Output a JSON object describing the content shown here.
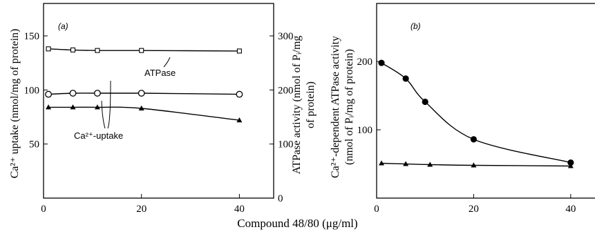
{
  "xlabel": "Compound 48/80 (μg/ml)",
  "chart_data": [
    {
      "type": "line",
      "panel": "(a)",
      "x_ticks": [
        "0",
        "20",
        "40"
      ],
      "xlim": [
        0,
        47
      ],
      "ylabel_left": "Ca²⁺ uptake (nmol/mg of protein)",
      "ylabel_right": "ATPase activity (nmol of Pᵢ/mg of protein)",
      "ylim_left": [
        0,
        180
      ],
      "y_ticks_left": [
        "50",
        "100",
        "150"
      ],
      "ylim_right": [
        0,
        360
      ],
      "y_ticks_right": [
        "0",
        "100",
        "200",
        "300"
      ],
      "series": [
        {
          "name": "ATPase",
          "axis": "right",
          "marker": "square-open",
          "x": [
            1,
            6,
            11,
            20,
            40
          ],
          "y": [
            276,
            274,
            273,
            273,
            272
          ]
        },
        {
          "axis": "left",
          "marker": "circle-open",
          "x": [
            1,
            6,
            11,
            20,
            40
          ],
          "y": [
            96,
            97,
            97,
            97,
            96
          ]
        },
        {
          "name": "Ca²⁺-uptake",
          "axis": "left",
          "marker": "triangle-filled",
          "x": [
            1,
            6,
            11,
            20,
            40
          ],
          "y": [
            84,
            84,
            84,
            83,
            72
          ]
        }
      ],
      "annotations": [
        "ATPase",
        "Ca²⁺-uptake"
      ]
    },
    {
      "type": "line",
      "panel": "(b)",
      "x_ticks": [
        "0",
        "20",
        "40"
      ],
      "xlim": [
        0,
        47
      ],
      "ylabel": "Ca²⁺-dependent ATPase activity (nmol of Pᵢ/mg of protein)",
      "ylim": [
        0,
        285
      ],
      "y_ticks": [
        "100",
        "200"
      ],
      "series": [
        {
          "marker": "circle-filled",
          "x": [
            1,
            6,
            10,
            20,
            40
          ],
          "y": [
            198,
            175,
            141,
            86,
            52
          ]
        },
        {
          "marker": "triangle-filled",
          "x": [
            1,
            6,
            11,
            20,
            40
          ],
          "y": [
            51,
            50,
            49,
            48,
            47
          ]
        }
      ]
    }
  ]
}
